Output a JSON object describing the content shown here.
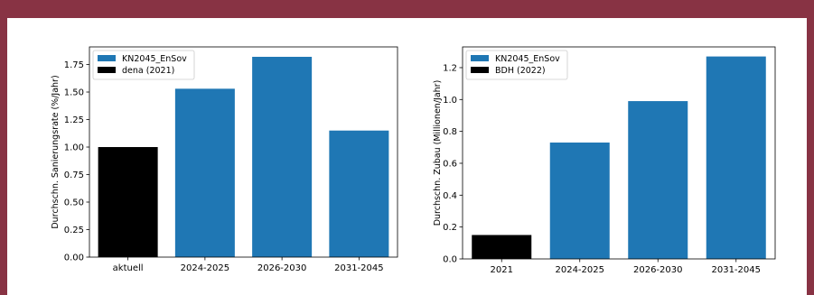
{
  "chart_data": [
    {
      "type": "bar",
      "categories": [
        "aktuell",
        "2024-2025",
        "2026-2030",
        "2031-2045"
      ],
      "values": [
        1.0,
        1.53,
        1.82,
        1.15
      ],
      "bar_series": [
        "dena (2021)",
        "KN2045_EnSov",
        "KN2045_EnSov",
        "KN2045_EnSov"
      ],
      "series": [
        {
          "name": "KN2045_EnSov",
          "color": "#1f77b4"
        },
        {
          "name": "dena (2021)",
          "color": "#000000"
        }
      ],
      "ylabel": "Durchschn. Sanierungsrate (%/Jahr)",
      "xlabel": "",
      "ylim": [
        0,
        1.91
      ],
      "yticks": [
        0.0,
        0.25,
        0.5,
        0.75,
        1.0,
        1.25,
        1.5,
        1.75
      ],
      "ytick_labels": [
        "0.00",
        "0.25",
        "0.50",
        "0.75",
        "1.00",
        "1.25",
        "1.50",
        "1.75"
      ],
      "legend": "top-left",
      "grid": false
    },
    {
      "type": "bar",
      "categories": [
        "2021",
        "2024-2025",
        "2026-2030",
        "2031-2045"
      ],
      "values": [
        0.15,
        0.73,
        0.99,
        1.27
      ],
      "bar_series": [
        "BDH (2022)",
        "KN2045_EnSov",
        "KN2045_EnSov",
        "KN2045_EnSov"
      ],
      "series": [
        {
          "name": "KN2045_EnSov",
          "color": "#1f77b4"
        },
        {
          "name": "BDH (2022)",
          "color": "#000000"
        }
      ],
      "ylabel": "Durchschn. Zubau (Millionen/Jahr)",
      "xlabel": "",
      "ylim": [
        0,
        1.33
      ],
      "yticks": [
        0.0,
        0.2,
        0.4,
        0.6,
        0.8,
        1.0,
        1.2
      ],
      "ytick_labels": [
        "0.0",
        "0.2",
        "0.4",
        "0.6",
        "0.8",
        "1.0",
        "1.2"
      ],
      "legend": "top-left",
      "grid": false
    }
  ]
}
